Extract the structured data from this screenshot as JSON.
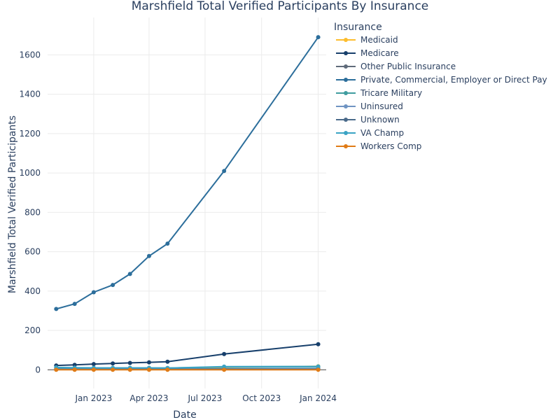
{
  "chart_data": {
    "type": "line",
    "title": "Marshfield Total Verified Participants By Insurance",
    "xlabel": "Date",
    "ylabel": "Marshfield Total Verified Participants",
    "x_range": [
      "2022-10-18",
      "2024-01-14"
    ],
    "ylim": [
      -95,
      1790
    ],
    "x_ticks": [
      {
        "date": "2023-01-01",
        "label": "Jan 2023"
      },
      {
        "date": "2023-04-01",
        "label": "Apr 2023"
      },
      {
        "date": "2023-07-01",
        "label": "Jul 2023"
      },
      {
        "date": "2023-10-01",
        "label": "Oct 2023"
      },
      {
        "date": "2024-01-01",
        "label": "Jan 2024"
      }
    ],
    "y_ticks": [
      0,
      200,
      400,
      600,
      800,
      1000,
      1200,
      1400,
      1600
    ],
    "grid": true,
    "legend_title": "Insurance",
    "legend_position": "right",
    "x": [
      "2022-11-01",
      "2022-12-01",
      "2023-01-01",
      "2023-02-01",
      "2023-03-01",
      "2023-04-01",
      "2023-05-01",
      "2023-08-01",
      "2024-01-01"
    ],
    "series": [
      {
        "name": "Medicaid",
        "color": "#fdbd2e",
        "values": [
          5,
          5,
          5,
          5,
          5,
          6,
          6,
          12,
          18
        ]
      },
      {
        "name": "Medicare",
        "color": "#173f6b",
        "values": [
          22,
          25,
          29,
          32,
          35,
          38,
          41,
          80,
          130
        ]
      },
      {
        "name": "Other Public Insurance",
        "color": "#5f6b7a",
        "values": [
          1,
          1,
          1,
          1,
          1,
          1,
          1,
          2,
          3
        ]
      },
      {
        "name": "Private, Commercial, Employer or Direct Pay",
        "color": "#2c6e9b",
        "values": [
          309,
          335,
          394,
          431,
          487,
          578,
          641,
          1010,
          1690
        ]
      },
      {
        "name": "Tricare Military",
        "color": "#3f9c9f",
        "values": [
          10,
          10,
          9,
          9,
          9,
          9,
          9,
          14,
          15
        ]
      },
      {
        "name": "Uninsured",
        "color": "#6f94c2",
        "values": [
          3,
          3,
          3,
          3,
          3,
          3,
          3,
          5,
          6
        ]
      },
      {
        "name": "Unknown",
        "color": "#4a6a8a",
        "values": [
          2,
          2,
          2,
          2,
          2,
          2,
          2,
          3,
          4
        ]
      },
      {
        "name": "VA Champ",
        "color": "#3aa3c4",
        "values": [
          12,
          11,
          10,
          10,
          10,
          10,
          9,
          16,
          17
        ]
      },
      {
        "name": "Workers Comp",
        "color": "#e07b16",
        "values": [
          0,
          0,
          0,
          0,
          0,
          0,
          0,
          0,
          0
        ]
      }
    ]
  }
}
